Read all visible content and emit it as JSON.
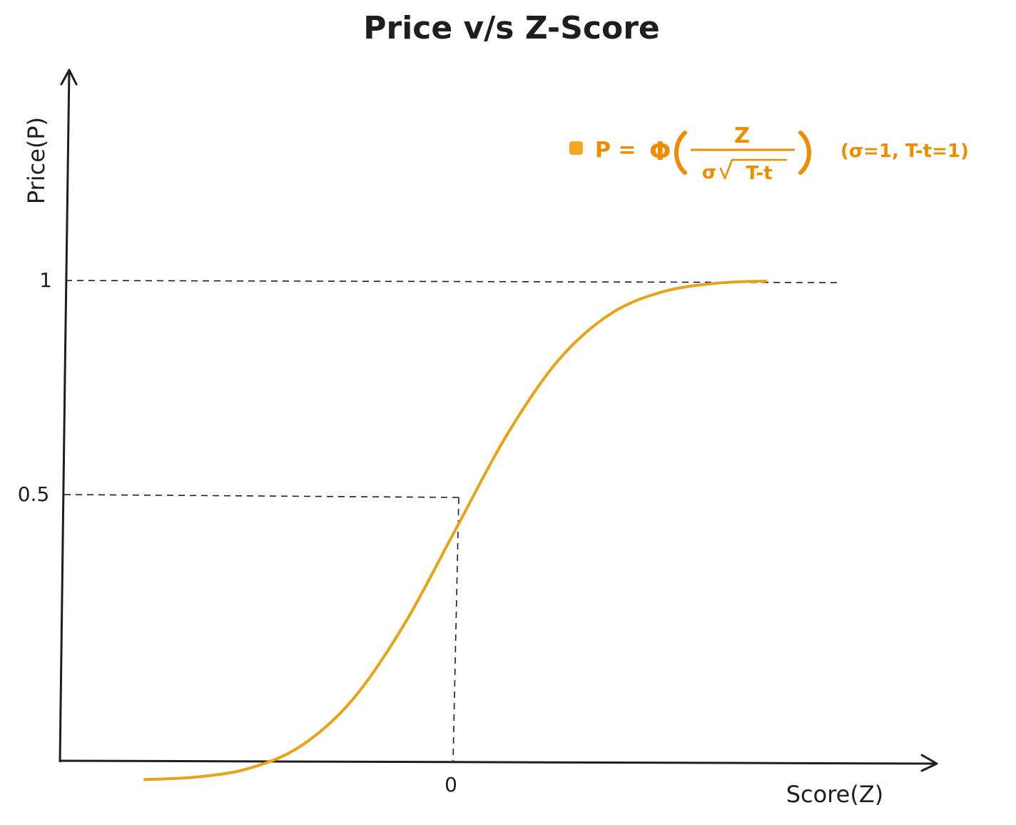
{
  "chart_data": {
    "type": "line",
    "title": "Price v/s Z-Score",
    "xlabel": "Score(Z)",
    "ylabel": "Price(P)",
    "x_ticks": [
      "0"
    ],
    "y_ticks": [
      "0.5",
      "1"
    ],
    "xlim": [
      -3.5,
      3.5
    ],
    "ylim": [
      0,
      1
    ],
    "grid": false,
    "legend_position": "top-right",
    "color": "#e8a317",
    "series": [
      {
        "name": "P = Φ( Z / σ√T-t )  (σ=1, T-t=1)",
        "x": [
          -3.0,
          -2.5,
          -2.0,
          -1.5,
          -1.0,
          -0.5,
          0.0,
          0.5,
          1.0,
          1.5,
          2.0,
          2.5,
          3.0
        ],
        "y": [
          0.001,
          0.006,
          0.023,
          0.067,
          0.159,
          0.309,
          0.5,
          0.691,
          0.841,
          0.933,
          0.977,
          0.994,
          0.999
        ]
      }
    ],
    "reference_lines": [
      {
        "axis": "y",
        "value": 1
      },
      {
        "axis": "y",
        "value": 0.5
      },
      {
        "axis": "x",
        "value": 0
      }
    ]
  },
  "legend": {
    "lhs": "P =",
    "phi": "Φ",
    "numerator": "Z",
    "denominator_sigma": "σ",
    "denominator_radicand": "T-t",
    "params": "(σ=1, T-t=1)"
  }
}
